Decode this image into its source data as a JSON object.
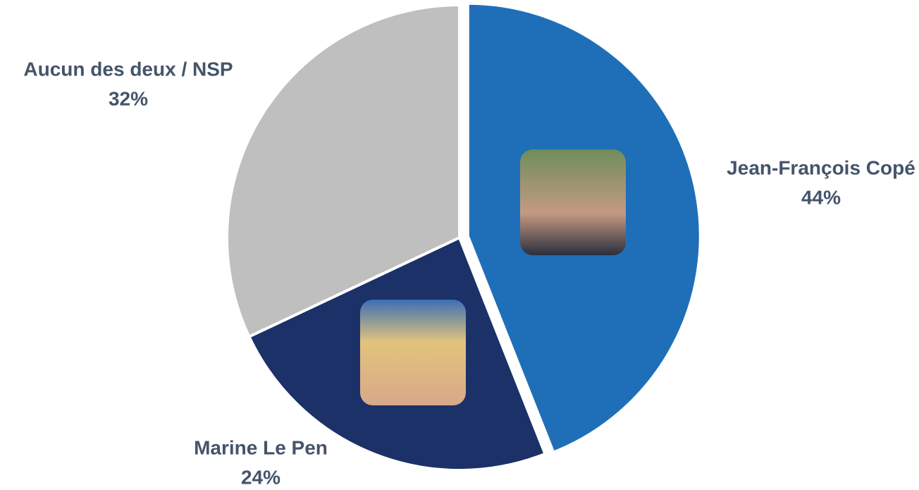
{
  "chart_data": {
    "type": "pie",
    "categories": [
      "Jean-François Copé",
      "Marine Le Pen",
      "Aucun des deux / NSP"
    ],
    "values": [
      44,
      24,
      32
    ],
    "value_labels": [
      "44%",
      "24%",
      "32%"
    ],
    "colors": [
      "#1f6fb8",
      "#1b3168",
      "#bfbfbf"
    ]
  }
}
